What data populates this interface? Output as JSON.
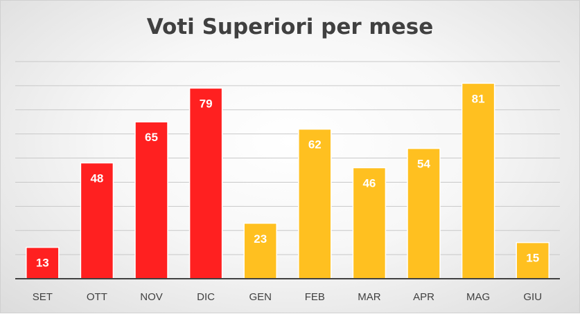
{
  "chart_data": {
    "type": "bar",
    "title": "Voti Superiori per mese",
    "xlabel": "",
    "ylabel": "",
    "categories": [
      "SET",
      "OTT",
      "NOV",
      "DIC",
      "GEN",
      "FEB",
      "MAR",
      "APR",
      "MAG",
      "GIU"
    ],
    "values": [
      13,
      48,
      65,
      79,
      23,
      62,
      46,
      54,
      81,
      15
    ],
    "bar_colors": [
      "#ff2020",
      "#ff2020",
      "#ff2020",
      "#ff2020",
      "#ffc020",
      "#ffc020",
      "#ffc020",
      "#ffc020",
      "#ffc020",
      "#ffc020"
    ],
    "ylim": [
      0,
      90
    ],
    "gridline_step": 10,
    "grid": true,
    "legend": "none"
  }
}
